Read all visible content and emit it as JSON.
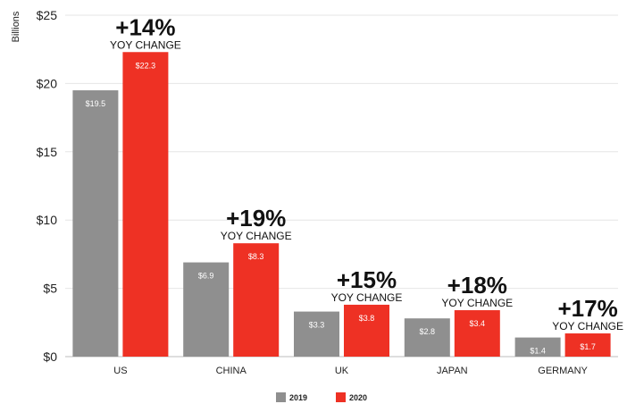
{
  "chart_data": {
    "type": "bar",
    "ylabel": "Billions",
    "ylim": [
      0,
      25
    ],
    "yticks": [
      {
        "value": 0,
        "label": "$0"
      },
      {
        "value": 5,
        "label": "$5"
      },
      {
        "value": 10,
        "label": "$10"
      },
      {
        "value": 15,
        "label": "$15"
      },
      {
        "value": 20,
        "label": "$20"
      },
      {
        "value": 25,
        "label": "$25"
      }
    ],
    "grid": true,
    "legend_position": "bottom",
    "categories": [
      "US",
      "CHINA",
      "UK",
      "JAPAN",
      "GERMANY"
    ],
    "series": [
      {
        "name": "2019",
        "color": "#8f8f8f",
        "values": [
          19.5,
          6.9,
          3.3,
          2.8,
          1.4
        ],
        "labels": [
          "$19.5",
          "$6.9",
          "$3.3",
          "$2.8",
          "$1.4"
        ]
      },
      {
        "name": "2020",
        "color": "#ee3124",
        "values": [
          22.3,
          8.3,
          3.8,
          3.4,
          1.7
        ],
        "labels": [
          "$22.3",
          "$8.3",
          "$3.8",
          "$3.4",
          "$1.7"
        ]
      }
    ],
    "annotations": [
      {
        "category": "US",
        "change": "+14%",
        "text": "YOY CHANGE"
      },
      {
        "category": "CHINA",
        "change": "+19%",
        "text": "YOY CHANGE"
      },
      {
        "category": "UK",
        "change": "+15%",
        "text": "YOY CHANGE"
      },
      {
        "category": "JAPAN",
        "change": "+18%",
        "text": "YOY CHANGE"
      },
      {
        "category": "GERMANY",
        "change": "+17%",
        "text": "YOY CHANGE"
      }
    ]
  }
}
